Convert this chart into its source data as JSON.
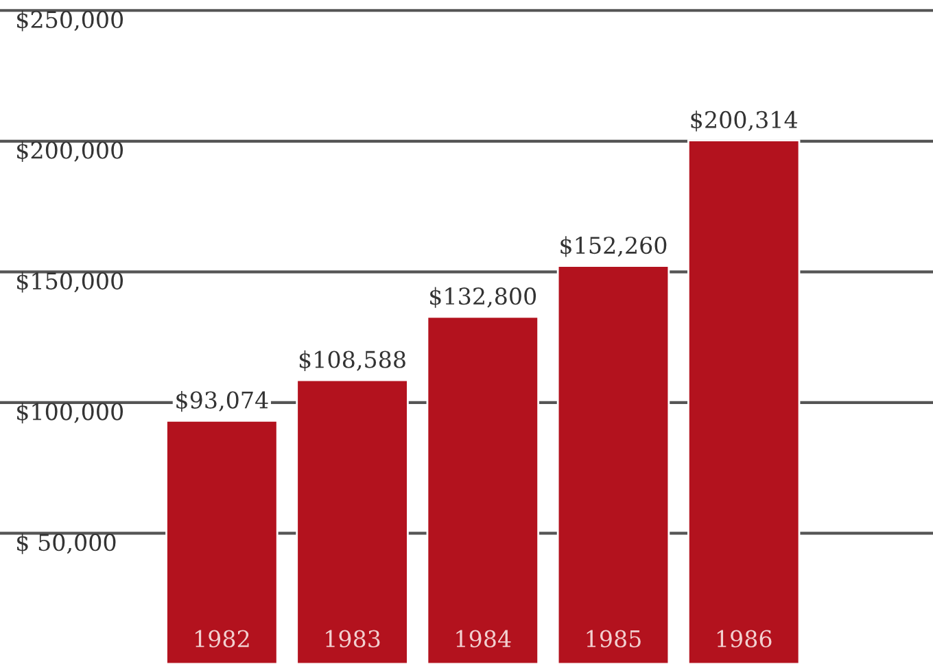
{
  "chart_data": {
    "type": "bar",
    "categories": [
      "1982",
      "1983",
      "1984",
      "1985",
      "1986"
    ],
    "values": [
      93074,
      108588,
      132800,
      152260,
      200314
    ],
    "value_labels": [
      "$93,074",
      "$108,588",
      "$132,800",
      "$152,260",
      "$200,314"
    ],
    "color": "#b3121e",
    "ylim": [
      0,
      254000
    ],
    "yticks": [
      {
        "value": 50000,
        "label": "$ 50,000"
      },
      {
        "value": 100000,
        "label": "$100,000"
      },
      {
        "value": 150000,
        "label": "$150,000"
      },
      {
        "value": 200000,
        "label": "$200,000"
      },
      {
        "value": 250000,
        "label": "$250,000"
      }
    ],
    "grid": "y",
    "legend": false
  }
}
